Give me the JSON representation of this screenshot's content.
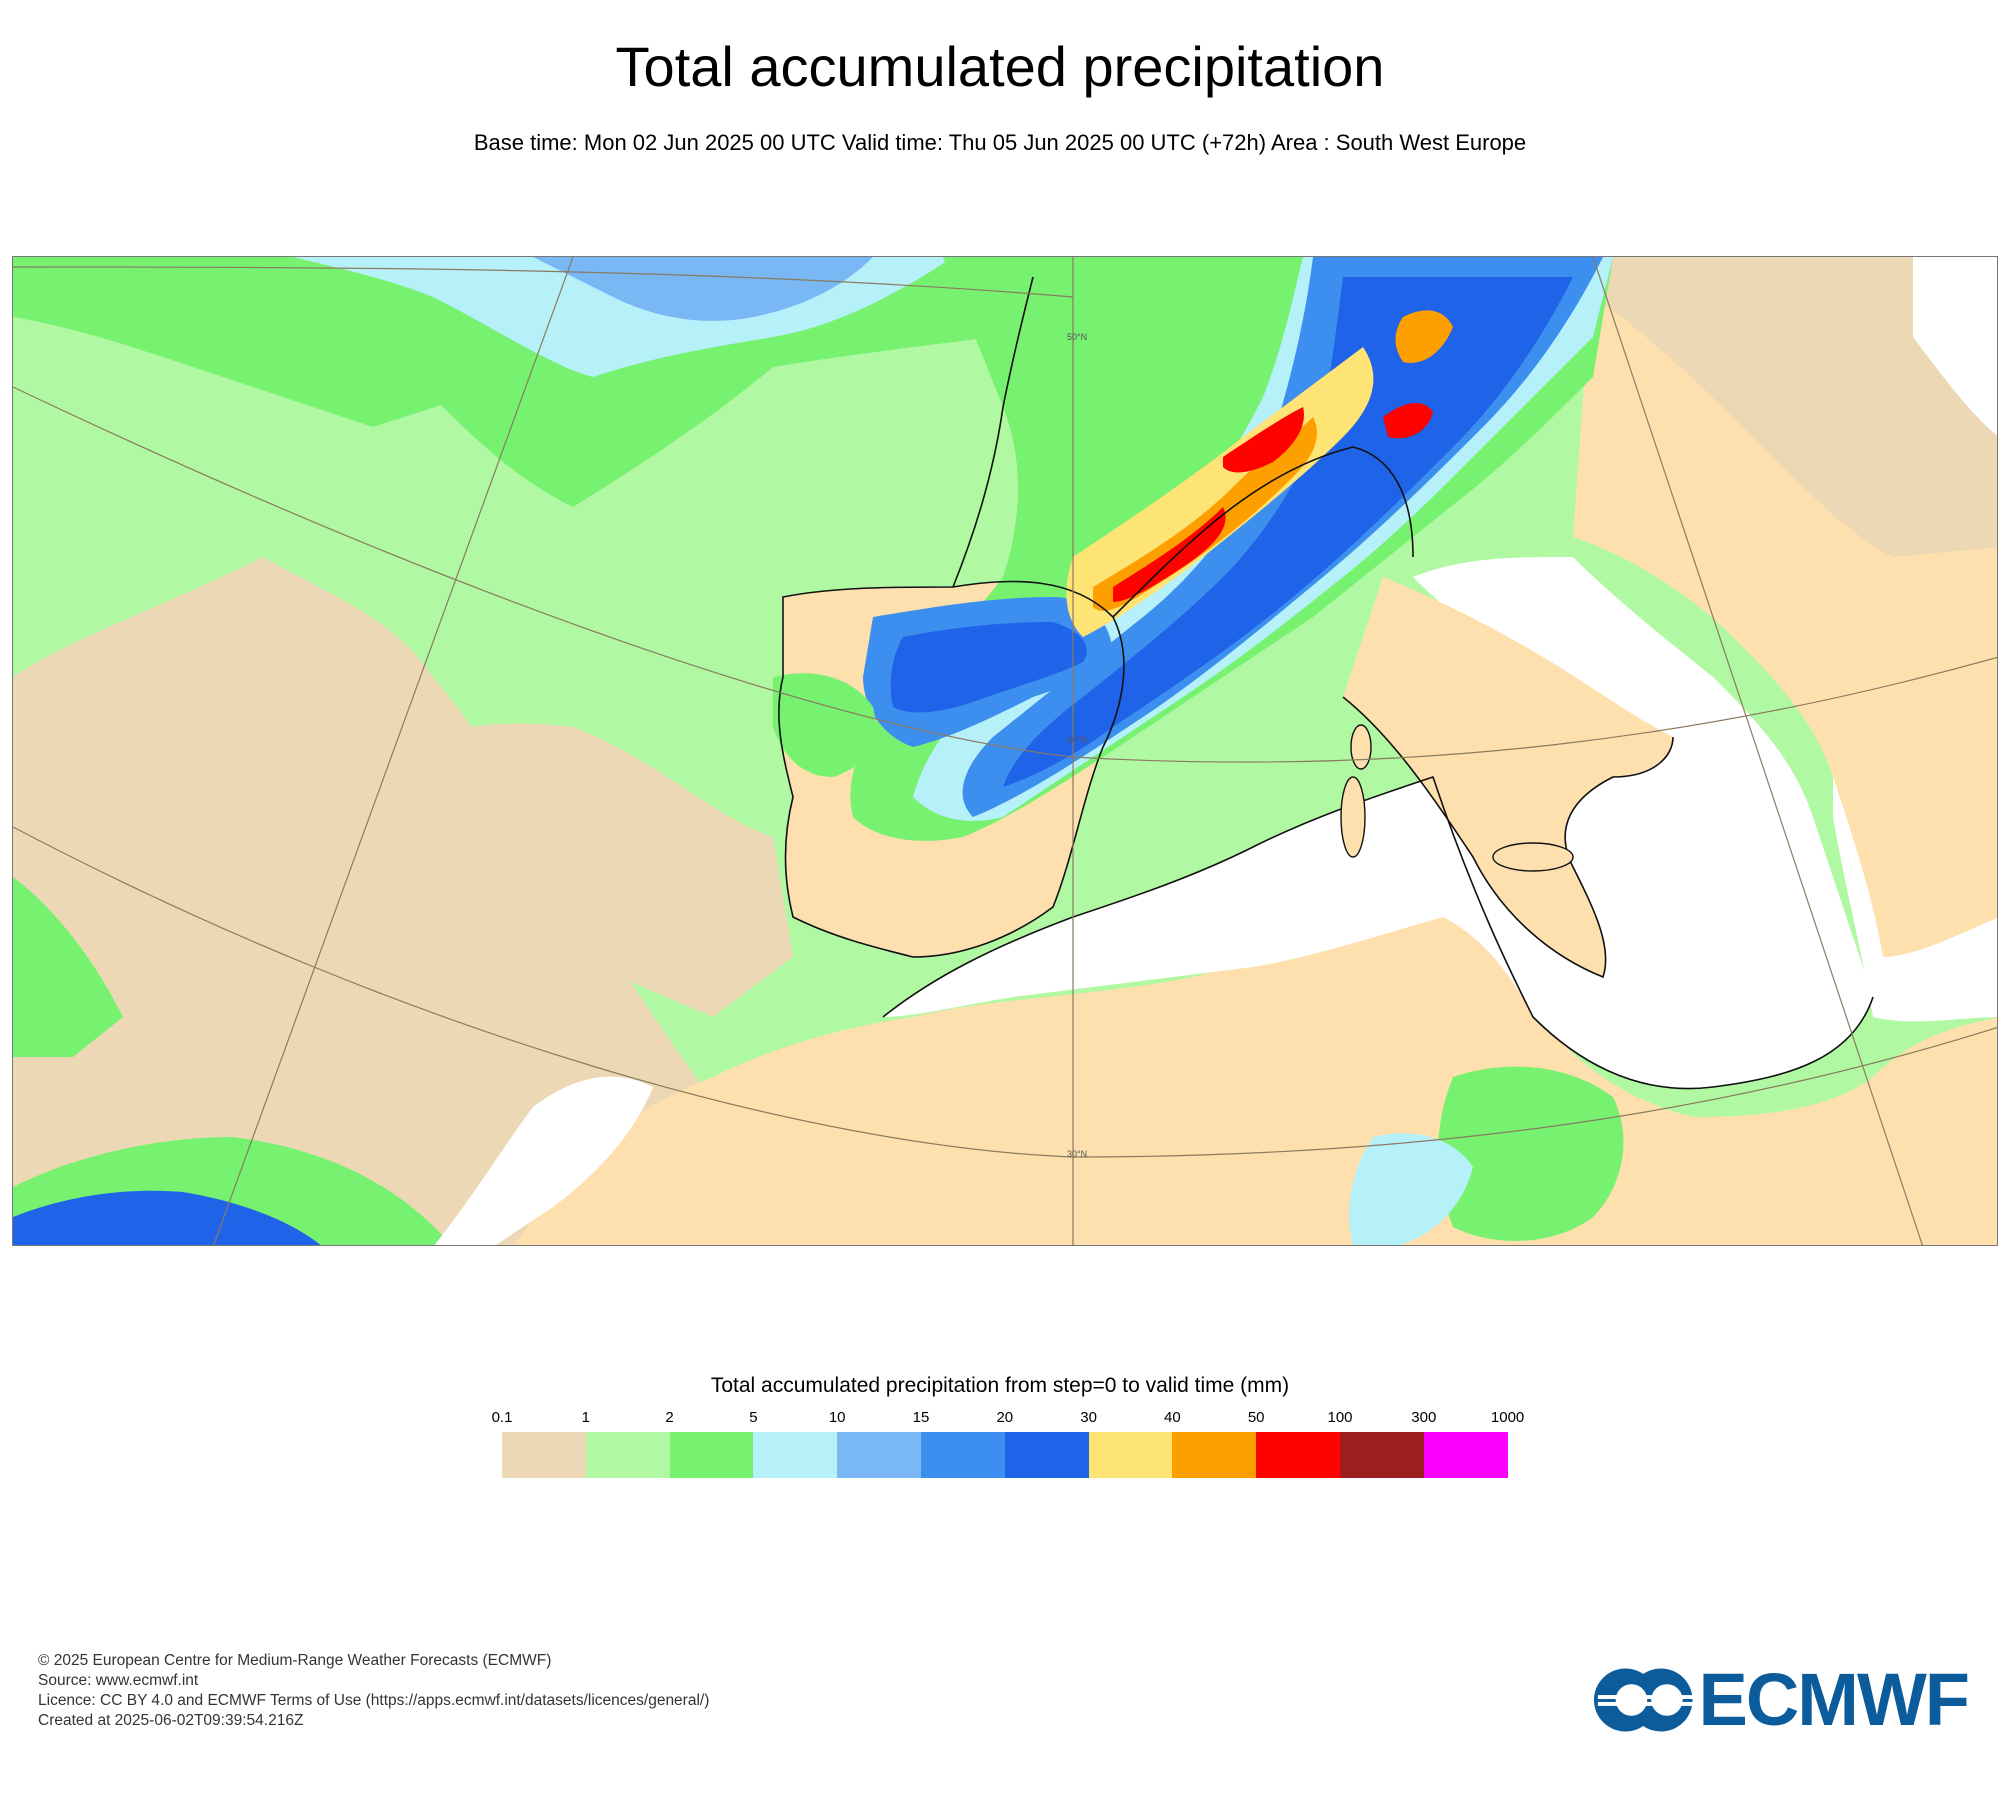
{
  "header": {
    "title": "Total accumulated precipitation",
    "subtitle": "Base time: Mon 02 Jun 2025 00 UTC Valid time: Thu 05 Jun 2025 00 UTC (+72h) Area : South West Europe"
  },
  "map": {
    "gridlines": {
      "lat_50": "50°N",
      "lat_40": "40°N",
      "lat_30": "30°N"
    }
  },
  "legend": {
    "title": "Total accumulated precipitation from step=0 to valid time (mm)",
    "ticks": [
      "0.1",
      "1",
      "2",
      "5",
      "10",
      "15",
      "20",
      "30",
      "40",
      "50",
      "100",
      "300",
      "1000"
    ],
    "colors": [
      "#ecd8b5",
      "#b1f8a2",
      "#77f170",
      "#b6f0f8",
      "#7ab7f5",
      "#3d8fef",
      "#1e63e8",
      "#fee375",
      "#fe9f00",
      "#fe0200",
      "#9e1e1e",
      "#fb00ff"
    ]
  },
  "colors": {
    "land_light": "#fde0ad",
    "sea": "#ffffff",
    "coast": "#111111",
    "contour": "#8878e8",
    "logo_blue": "#0c5c9c"
  },
  "footer": {
    "line1": "© 2025 European Centre for Medium-Range Weather Forecasts (ECMWF)",
    "line2": "Source: www.ecmwf.int",
    "line3": "Licence: CC BY 4.0 and ECMWF Terms of Use (https://apps.ecmwf.int/datasets/licences/general/)",
    "line4": "Created at 2025-06-02T09:39:54.216Z"
  },
  "logo": {
    "text": "ECMWF"
  }
}
